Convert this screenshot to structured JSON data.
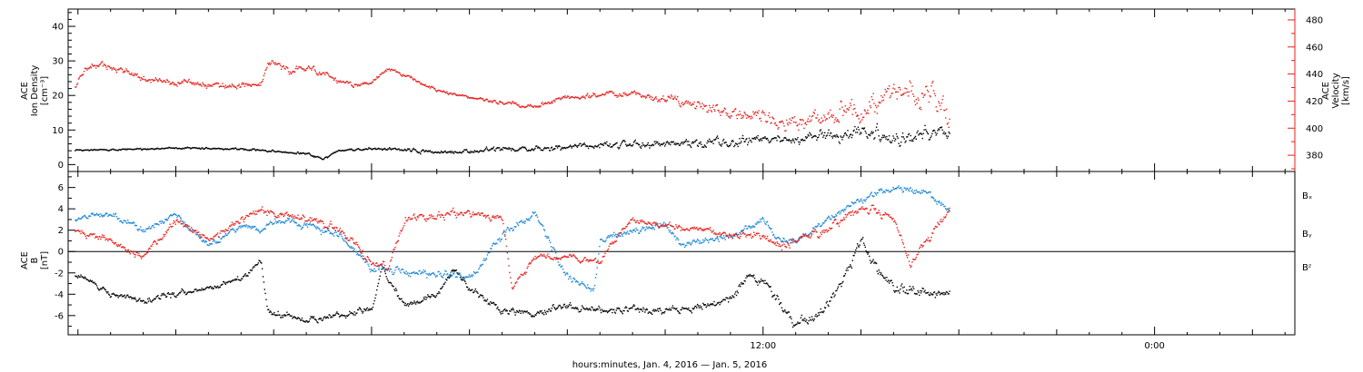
{
  "colors": {
    "black": "#000000",
    "red": "#e8201c",
    "blue": "#1a86d6"
  },
  "chart_data": [
    {
      "type": "scatter",
      "panel": "top",
      "y_title_lines": [
        "ACE",
        "Ion Density",
        "[cm⁻³]"
      ],
      "y2_title_lines": [
        "ACE",
        "Velocity",
        "[km/s]"
      ],
      "ylim": [
        -2,
        45
      ],
      "yticks": [
        0,
        10,
        20,
        30,
        40
      ],
      "y2lim": [
        368,
        488
      ],
      "y2ticks": [
        380,
        400,
        420,
        440,
        460,
        480
      ],
      "series": [
        {
          "key": "density",
          "axis": "left",
          "color": "black",
          "knots": [
            [
              -9.1,
              4
            ],
            [
              -8,
              4.3
            ],
            [
              -7,
              4.5
            ],
            [
              -6,
              4.8
            ],
            [
              -5,
              4.6
            ],
            [
              -4,
              4.5
            ],
            [
              -3,
              3.8
            ],
            [
              -2,
              3.1
            ],
            [
              -1.5,
              1.5
            ],
            [
              -1,
              4
            ],
            [
              0,
              4.6
            ],
            [
              1,
              4.2
            ],
            [
              2,
              3.4
            ],
            [
              3,
              4
            ],
            [
              4,
              4.5
            ],
            [
              5,
              4.5
            ],
            [
              6,
              5
            ],
            [
              7,
              5.5
            ],
            [
              8,
              6
            ],
            [
              9,
              6
            ],
            [
              10,
              6.2
            ],
            [
              11,
              6.5
            ],
            [
              12,
              7
            ],
            [
              13,
              7.2
            ],
            [
              14,
              8
            ],
            [
              15,
              9.2
            ],
            [
              16,
              8
            ],
            [
              17,
              9
            ],
            [
              17.7,
              9.5
            ]
          ],
          "scatter": [
            0.4,
            0.5,
            0.7,
            1.1,
            1.4,
            1.9,
            2.1,
            2.4,
            2.6,
            3.0,
            3.4,
            3.4
          ],
          "scatter_from": [
            -9.1,
            -3,
            0,
            3,
            6,
            8,
            9.5,
            11,
            12.5,
            14,
            16,
            17.7
          ]
        },
        {
          "key": "velocity",
          "axis": "right",
          "color": "red",
          "knots": [
            [
              -9.1,
              432
            ],
            [
              -8.8,
              444
            ],
            [
              -8.3,
              447
            ],
            [
              -7.6,
              442
            ],
            [
              -7,
              436
            ],
            [
              -6,
              433
            ],
            [
              -5,
              432
            ],
            [
              -4,
              431
            ],
            [
              -3.4,
              432
            ],
            [
              -3.2,
              448
            ],
            [
              -2.5,
              443
            ],
            [
              -1.8,
              444
            ],
            [
              -1.2,
              437
            ],
            [
              -0.5,
              431
            ],
            [
              0,
              434
            ],
            [
              0.5,
              444
            ],
            [
              1.2,
              437
            ],
            [
              2,
              428
            ],
            [
              3,
              423
            ],
            [
              4,
              419
            ],
            [
              5,
              416
            ],
            [
              6,
              423
            ],
            [
              7,
              424
            ],
            [
              8,
              426
            ],
            [
              9,
              421
            ],
            [
              10,
              416
            ],
            [
              11,
              412
            ],
            [
              12,
              408
            ],
            [
              13,
              404
            ],
            [
              14,
              408
            ],
            [
              15,
              412
            ],
            [
              15.7,
              425
            ],
            [
              16.5,
              427
            ],
            [
              17.2,
              428
            ],
            [
              17.7,
              405
            ]
          ],
          "scatter": [
            4,
            4,
            3,
            2,
            3,
            4,
            6,
            8,
            10,
            12,
            16,
            18
          ],
          "scatter_from": [
            -9.1,
            -3,
            0,
            3,
            6,
            8,
            9.5,
            11,
            12.5,
            14,
            16,
            17.7
          ]
        }
      ]
    },
    {
      "type": "scatter",
      "panel": "bottom",
      "y_title_lines": [
        "ACE",
        "B",
        "[nT]"
      ],
      "ylim": [
        -7.8,
        7.5
      ],
      "yticks": [
        -6,
        -4,
        -2,
        0,
        2,
        4,
        6
      ],
      "zero_line": true,
      "legend": [
        {
          "label": "Bₓ",
          "color": "black"
        },
        {
          "label": "Bᵧ",
          "color": "blue"
        },
        {
          "label": "Bᶻ",
          "color": "red"
        }
      ],
      "series": [
        {
          "key": "bx",
          "color": "black",
          "knots": [
            [
              -9.1,
              -2
            ],
            [
              -8.5,
              -3
            ],
            [
              -8,
              -4
            ],
            [
              -7,
              -4.5
            ],
            [
              -6,
              -4
            ],
            [
              -5,
              -3.5
            ],
            [
              -4,
              -2.5
            ],
            [
              -3.4,
              -1
            ],
            [
              -3.2,
              -5.5
            ],
            [
              -2,
              -6.5
            ],
            [
              -1,
              -6
            ],
            [
              0,
              -5.5
            ],
            [
              0.3,
              -1.5
            ],
            [
              0.6,
              -3
            ],
            [
              1,
              -5
            ],
            [
              2,
              -4
            ],
            [
              2.5,
              -1.5
            ],
            [
              3,
              -3.5
            ],
            [
              4,
              -5.5
            ],
            [
              5,
              -6
            ],
            [
              6,
              -5
            ],
            [
              7,
              -5.5
            ],
            [
              8,
              -5.5
            ],
            [
              9,
              -5.5
            ],
            [
              10,
              -5.2
            ],
            [
              11,
              -4.5
            ],
            [
              11.5,
              -2.5
            ],
            [
              12,
              -3
            ],
            [
              13,
              -6.8
            ],
            [
              13.5,
              -6.5
            ],
            [
              14,
              -5
            ],
            [
              15,
              1
            ],
            [
              15.5,
              -1.5
            ],
            [
              16,
              -3.5
            ],
            [
              17,
              -4
            ],
            [
              17.7,
              -4
            ]
          ],
          "scatter": [
            0.5,
            0.5,
            0.5,
            0.6,
            0.6,
            0.6,
            0.6,
            0.8,
            1.0,
            0.8
          ],
          "scatter_from": [
            -9.1,
            -4,
            -2,
            0,
            3,
            6,
            9,
            12,
            15,
            17.7
          ]
        },
        {
          "key": "by",
          "color": "blue",
          "knots": [
            [
              -9.1,
              3
            ],
            [
              -8,
              3.5
            ],
            [
              -7,
              2
            ],
            [
              -6,
              3.5
            ],
            [
              -5,
              0.5
            ],
            [
              -4,
              2.5
            ],
            [
              -3.4,
              2
            ],
            [
              -3,
              3
            ],
            [
              -2,
              2.5
            ],
            [
              -1,
              1.5
            ],
            [
              0,
              -1.5
            ],
            [
              1,
              -2
            ],
            [
              2,
              -2
            ],
            [
              3,
              -2.5
            ],
            [
              4,
              1.5
            ],
            [
              5,
              3.5
            ],
            [
              6,
              -2.5
            ],
            [
              6.8,
              -3.5
            ],
            [
              7,
              1
            ],
            [
              8,
              2
            ],
            [
              9,
              2.5
            ],
            [
              9.5,
              0.5
            ],
            [
              10,
              1
            ],
            [
              11,
              1.5
            ],
            [
              12,
              3
            ],
            [
              12.5,
              1
            ],
            [
              13,
              1
            ],
            [
              14,
              3
            ],
            [
              15,
              5
            ],
            [
              16,
              6
            ],
            [
              17,
              5.5
            ],
            [
              17.7,
              4
            ]
          ],
          "scatter": [
            0.5,
            0.5,
            0.7,
            0.6,
            0.6,
            0.6,
            0.5,
            0.5,
            0.5
          ],
          "scatter_from": [
            -9.1,
            -4,
            0,
            3,
            6,
            9,
            12,
            15,
            17.7
          ]
        },
        {
          "key": "bz",
          "color": "red",
          "knots": [
            [
              -9.1,
              2
            ],
            [
              -8,
              1
            ],
            [
              -7,
              -0.5
            ],
            [
              -6,
              3
            ],
            [
              -5,
              1
            ],
            [
              -4,
              3
            ],
            [
              -3.4,
              4
            ],
            [
              -3,
              3.5
            ],
            [
              -2,
              3
            ],
            [
              -1,
              2
            ],
            [
              0,
              -1
            ],
            [
              0.5,
              -1.5
            ],
            [
              1,
              3
            ],
            [
              2,
              3.5
            ],
            [
              3,
              3.5
            ],
            [
              4,
              3
            ],
            [
              4.3,
              -3.5
            ],
            [
              5,
              -0.5
            ],
            [
              6,
              -0.5
            ],
            [
              7,
              -1
            ],
            [
              7.5,
              1.5
            ],
            [
              8,
              3
            ],
            [
              9,
              2.5
            ],
            [
              10,
              2
            ],
            [
              11,
              1.5
            ],
            [
              12,
              1.5
            ],
            [
              12.5,
              0.5
            ],
            [
              13,
              1
            ],
            [
              14,
              2
            ],
            [
              15,
              4
            ],
            [
              16,
              3
            ],
            [
              16.5,
              -1
            ],
            [
              17,
              1
            ],
            [
              17.7,
              4
            ]
          ],
          "scatter": [
            0.5,
            0.6,
            0.7,
            0.6,
            0.5,
            0.5,
            0.6,
            0.8,
            0.7
          ],
          "scatter_from": [
            -9.1,
            -4,
            0,
            3,
            6,
            9,
            12,
            15,
            17.7
          ]
        }
      ]
    }
  ],
  "x_axis": {
    "range_hours": [
      -9.3,
      28.3
    ],
    "labeled_ticks": [
      {
        "hour": 12,
        "label": "12:00"
      },
      {
        "hour": 24,
        "label": "0:00"
      },
      {
        "hour": 36,
        "label": "12:00"
      }
    ],
    "title": "hours:minutes, Jan.  4, 2016 — Jan.  5, 2016"
  }
}
